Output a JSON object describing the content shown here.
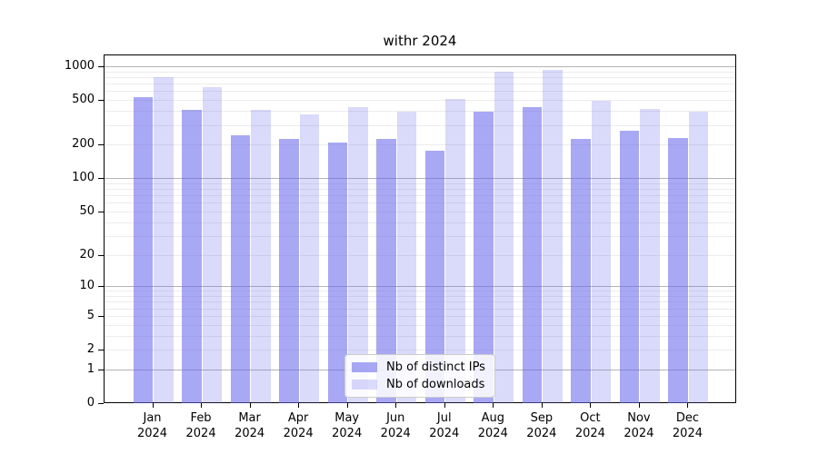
{
  "chart_data": {
    "type": "bar",
    "title": "withr 2024",
    "x": {
      "categories": [
        "Jan",
        "Feb",
        "Mar",
        "Apr",
        "May",
        "Jun",
        "Jul",
        "Aug",
        "Sep",
        "Oct",
        "Nov",
        "Dec"
      ],
      "year": "2024"
    },
    "series": [
      {
        "name": "Nb of distinct IPs",
        "slug": "distinct-ips",
        "color": "rgba(102,102,238,0.57)",
        "values": [
          530,
          405,
          240,
          225,
          210,
          225,
          175,
          390,
          435,
          225,
          265,
          230
        ]
      },
      {
        "name": "Nb of downloads",
        "slug": "downloads",
        "color": "rgba(102,102,238,0.24)",
        "values": [
          795,
          650,
          410,
          370,
          435,
          390,
          510,
          895,
          930,
          495,
          420,
          390
        ]
      }
    ],
    "y_axis": {
      "scale": "log1p",
      "range": [
        0,
        1300
      ],
      "tick_labels": [
        1000,
        500,
        200,
        100,
        50,
        20,
        10,
        5,
        2,
        1,
        0
      ],
      "major_gridlines": [
        1,
        10,
        100,
        1000
      ],
      "minor_gridlines": [
        2,
        3,
        4,
        5,
        6,
        7,
        8,
        9,
        20,
        30,
        40,
        50,
        60,
        70,
        80,
        90,
        200,
        300,
        400,
        500,
        600,
        700,
        800,
        900
      ]
    },
    "legend": {
      "entries": [
        "Nb of distinct IPs",
        "Nb of downloads"
      ],
      "position": "bottom-center"
    }
  },
  "style": {
    "bar_dark": "rgba(102,102,238,0.57)",
    "bar_light": "rgba(102,102,238,0.24)",
    "major_grid_color": "#b4b4b4",
    "minor_grid_color": "#ececec",
    "spine_color": "#000000",
    "text_color": "#000000",
    "legend_bg": "rgba(255,255,255,0.85)",
    "legend_border": "#cccccc"
  }
}
